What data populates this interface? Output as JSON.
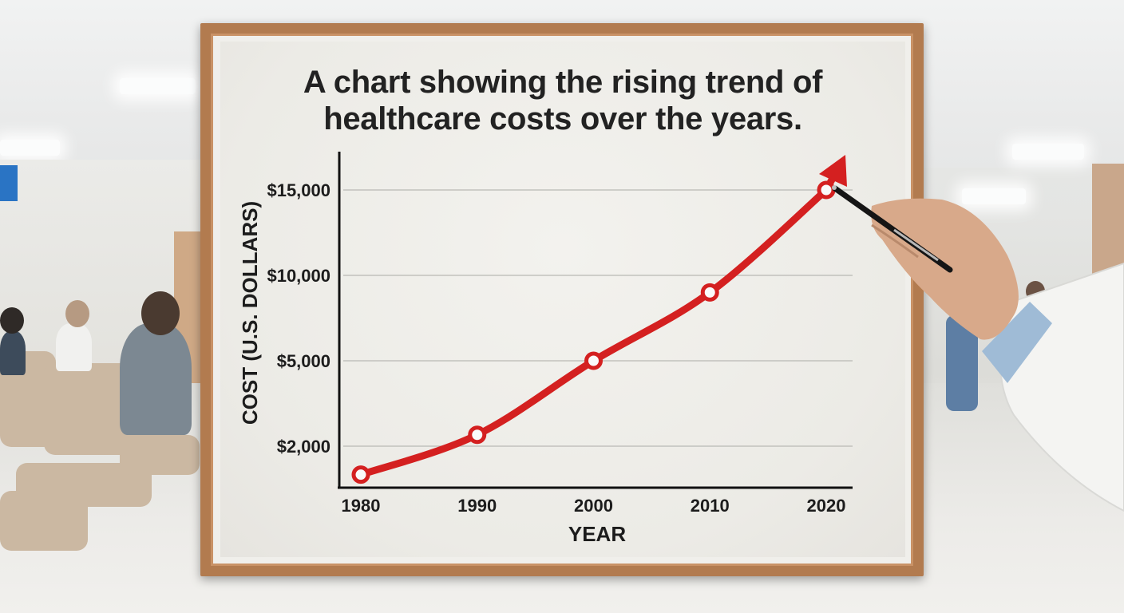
{
  "chart_data": {
    "type": "line",
    "title": "A chart showing the rising trend of healthcare costs over the years.",
    "xlabel": "YEAR",
    "ylabel": "COST (U.S. DOLLARS)",
    "x": [
      1980,
      1990,
      2000,
      2010,
      2020
    ],
    "x_tick_labels": [
      "1980",
      "1990",
      "2000",
      "2010",
      "2020"
    ],
    "y_tick_labels": [
      "$15,000",
      "$10,000",
      "$5,000",
      "$2,000"
    ],
    "y_tick_values": [
      15000,
      10000,
      5000,
      2000
    ],
    "series": [
      {
        "values": [
          1000,
          2400,
          5000,
          9000,
          15000
        ],
        "color": "#d42020"
      }
    ],
    "ylim": [
      0,
      17000
    ],
    "grid": true,
    "trend_arrow": true
  },
  "colors": {
    "line": "#d42020",
    "frame": "#b27b4f",
    "paper": "#efeeea",
    "grid": "#b9b9b4"
  }
}
